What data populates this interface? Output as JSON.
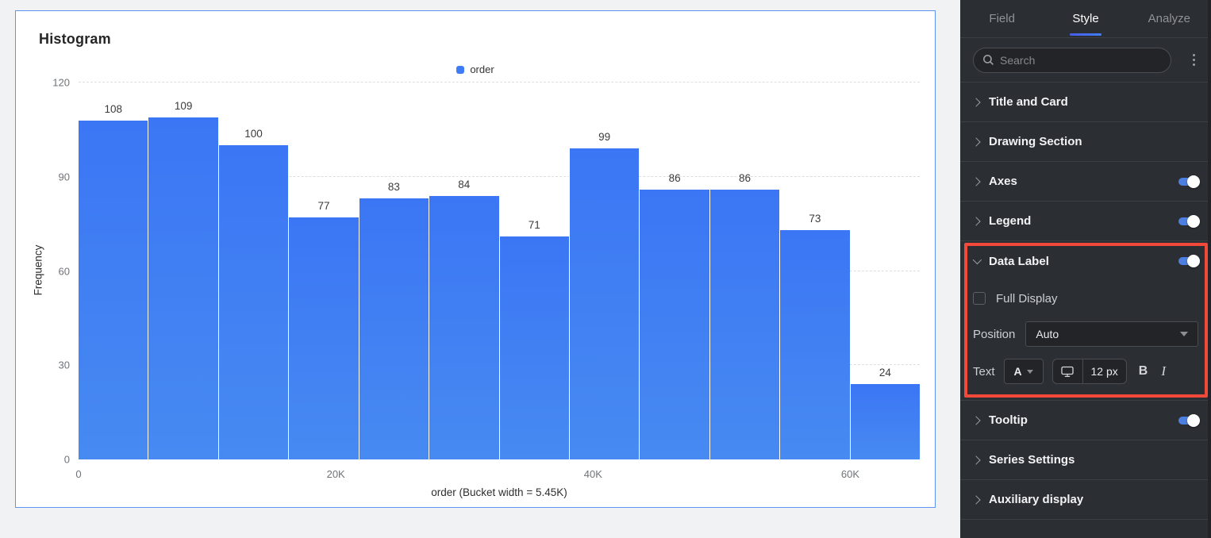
{
  "chart_data": {
    "type": "bar",
    "title": "Histogram",
    "series": [
      {
        "name": "order",
        "values": [
          108,
          109,
          100,
          77,
          83,
          84,
          71,
          99,
          86,
          86,
          73,
          24
        ]
      }
    ],
    "bucket_width": 5450,
    "xlabel": "order (Bucket width = 5.45K)",
    "ylabel": "Frequency",
    "ylim": [
      0,
      120
    ],
    "yticks": [
      0,
      30,
      60,
      90,
      120
    ],
    "xticks": [
      {
        "value": 0,
        "label": "0"
      },
      {
        "value": 20000,
        "label": "20K"
      },
      {
        "value": 40000,
        "label": "40K"
      },
      {
        "value": 60000,
        "label": "60K"
      }
    ],
    "legend": [
      "order"
    ],
    "legend_position": "top-center",
    "grid": "dashed-horizontal",
    "data_labels_shown": true
  },
  "colors": {
    "bar": "#3e7cf7",
    "card_border": "#6093f2",
    "panel_bg": "#2b2e33",
    "accent_toggle": "#4d7fe0",
    "highlight": "#f2493b",
    "tab_underline": "#3f7ef8"
  },
  "panel": {
    "tabs": [
      {
        "label": "Field"
      },
      {
        "label": "Style"
      },
      {
        "label": "Analyze"
      }
    ],
    "active_tab": "Style",
    "search": {
      "placeholder": "Search"
    },
    "sections": {
      "title_and_card": "Title and Card",
      "drawing_section": "Drawing Section",
      "axes": "Axes",
      "legend": "Legend",
      "tooltip": "Tooltip",
      "series_settings": "Series Settings",
      "auxiliary_display": "Auxiliary display",
      "data_label": {
        "title": "Data Label",
        "toggle_on": true,
        "full_display_label": "Full Display",
        "full_display_checked": false,
        "position_label": "Position",
        "position_value": "Auto",
        "text_label": "Text",
        "color_button": "A",
        "font_size": "12 px",
        "bold_label": "B",
        "italic_label": "I"
      }
    }
  }
}
